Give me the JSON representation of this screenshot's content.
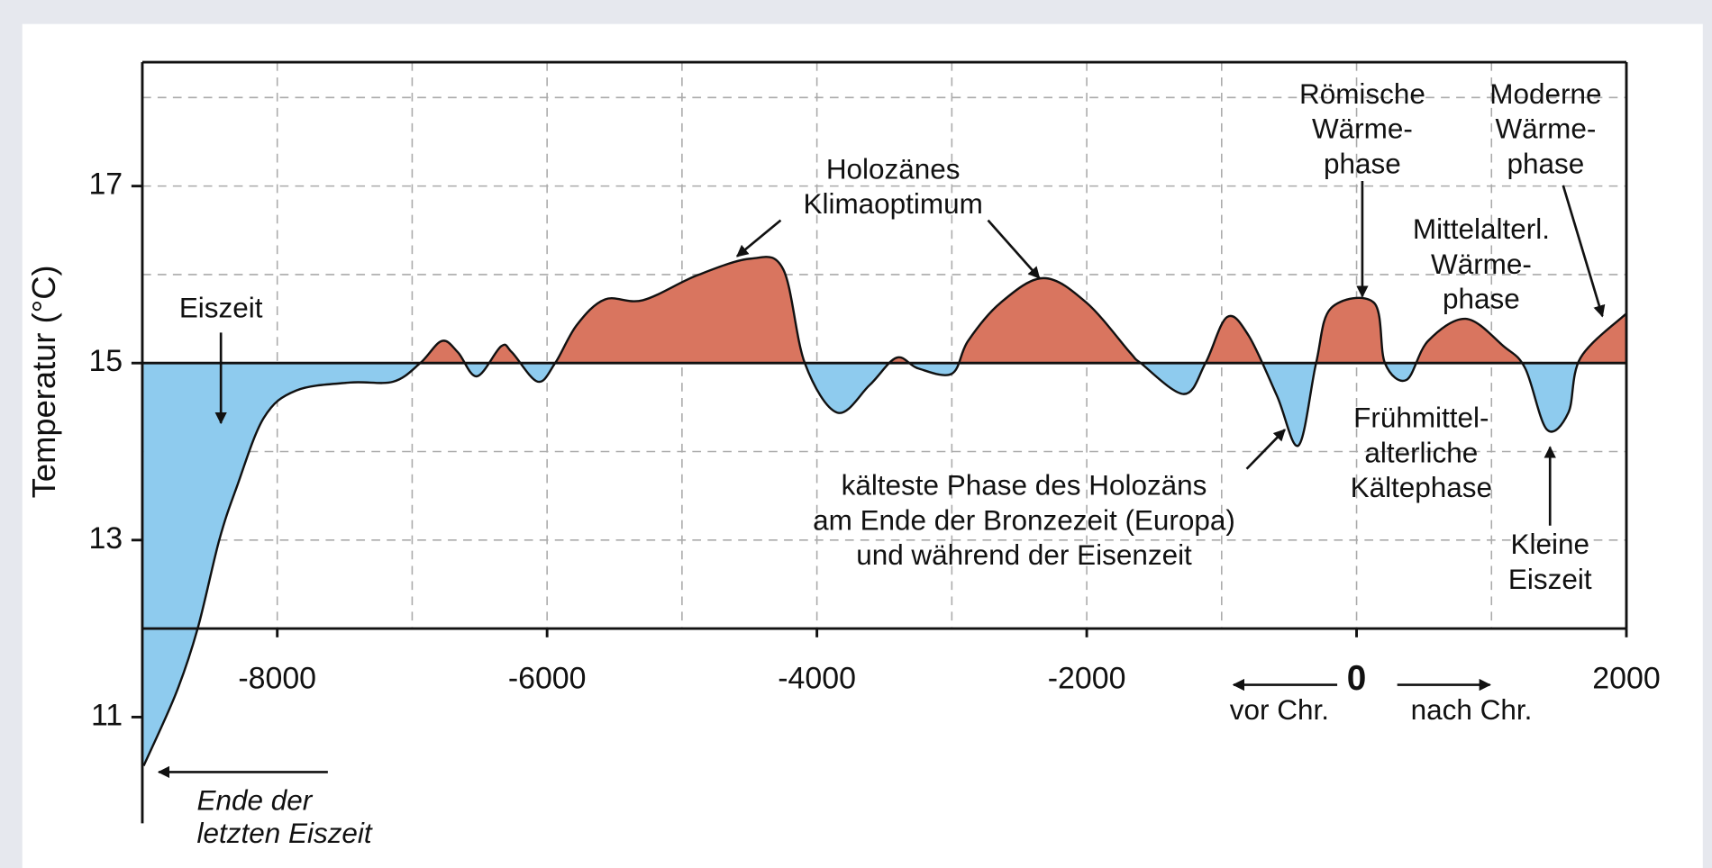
{
  "chart_data": {
    "type": "area",
    "ylabel": "Temperatur (°C)",
    "xlim": [
      -9000,
      2000
    ],
    "ylim": [
      9.8,
      18.4
    ],
    "xticks": [
      -8000,
      -6000,
      -4000,
      -2000,
      0,
      2000
    ],
    "yticks": [
      11,
      13,
      15,
      17
    ],
    "xgrid": [
      -8000,
      -7000,
      -6000,
      -5000,
      -4000,
      -3000,
      -2000,
      -1000,
      0,
      1000
    ],
    "ygrid": [
      13,
      14,
      16,
      17,
      18
    ],
    "baseline": 15,
    "xaxis_at": 12,
    "warm_color": "#d9755f",
    "cold_color": "#8ecbee",
    "x": [
      -8990,
      -8750,
      -8590,
      -8430,
      -8300,
      -8100,
      -7860,
      -7460,
      -7140,
      -6940,
      -6780,
      -6660,
      -6520,
      -6340,
      -6260,
      -6070,
      -5940,
      -5780,
      -5570,
      -5290,
      -4890,
      -4490,
      -4250,
      -4090,
      -3850,
      -3610,
      -3410,
      -3250,
      -3000,
      -2880,
      -2640,
      -2320,
      -2000,
      -1680,
      -1600,
      -1280,
      -1120,
      -960,
      -800,
      -590,
      -430,
      -300,
      -190,
      130,
      210,
      370,
      530,
      810,
      1090,
      1250,
      1410,
      1570,
      1660,
      2000
    ],
    "values": [
      10.45,
      11.27,
      12.0,
      13.0,
      13.6,
      14.38,
      14.69,
      14.78,
      14.79,
      15.0,
      15.25,
      15.12,
      14.85,
      15.19,
      15.12,
      14.79,
      15.0,
      15.43,
      15.72,
      15.71,
      15.99,
      16.18,
      16.06,
      15.0,
      14.44,
      14.75,
      15.06,
      14.94,
      14.88,
      15.25,
      15.68,
      15.96,
      15.68,
      15.12,
      15.0,
      14.65,
      15.0,
      15.52,
      15.31,
      14.63,
      14.07,
      15.0,
      15.62,
      15.68,
      15.0,
      14.81,
      15.25,
      15.5,
      15.19,
      14.94,
      14.25,
      14.44,
      15.06,
      15.56
    ],
    "direction_labels": [
      "vor Chr.",
      "nach Chr."
    ],
    "annotations": [
      {
        "lines": [
          "Eiszeit"
        ]
      },
      {
        "lines": [
          "Holozänes",
          "Klimaoptimum"
        ]
      },
      {
        "lines": [
          "Römische",
          "Wärme-",
          "phase"
        ]
      },
      {
        "lines": [
          "Moderne",
          "Wärme-",
          "phase"
        ]
      },
      {
        "lines": [
          "Mittelalterl.",
          "Wärme-",
          "phase"
        ]
      },
      {
        "lines": [
          "Frühmittel-",
          "alterliche",
          "Kältephase"
        ]
      },
      {
        "lines": [
          "Kleine",
          "Eiszeit"
        ]
      },
      {
        "lines": [
          "kälteste Phase des Holozäns",
          "am Ende der Bronzezeit (Europa)",
          "und während der Eisenzeit"
        ]
      },
      {
        "lines": [
          "Ende der",
          "letzten Eiszeit"
        ]
      }
    ]
  }
}
